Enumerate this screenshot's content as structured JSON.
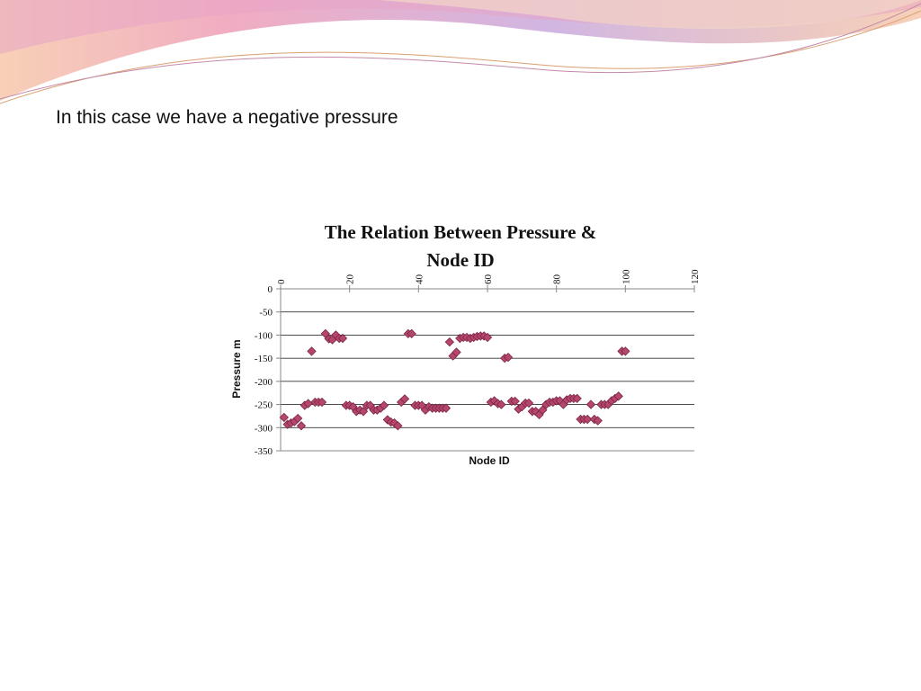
{
  "slide": {
    "text": "In this case we have a negative pressure"
  },
  "colors": {
    "marker_fill": "#b5476c",
    "marker_stroke": "#7a2446",
    "deco_pink": "#ee9eb7",
    "deco_lavender": "#c9a9dd",
    "deco_peach": "#f6c8aa"
  },
  "chart_data": {
    "type": "scatter",
    "title_line1": "The Relation Between  Pressure &",
    "title_line2": "Node ID",
    "xlabel": "Node  ID",
    "ylabel": "Pressure  m",
    "xlim": [
      0,
      120
    ],
    "ylim": [
      -350,
      0
    ],
    "x_ticks": [
      "0",
      "20",
      "40",
      "60",
      "80",
      "100",
      "120"
    ],
    "y_ticks": [
      "0",
      "-50",
      "-100",
      "-150",
      "-200",
      "-250",
      "-300",
      "-350"
    ],
    "grid": "horizontal major gridlines",
    "legend": "none",
    "x": [
      1,
      2,
      3,
      4,
      5,
      6,
      7,
      8,
      9,
      10,
      11,
      12,
      13,
      14,
      15,
      16,
      17,
      18,
      19,
      20,
      21,
      22,
      23,
      24,
      25,
      26,
      27,
      28,
      29,
      30,
      31,
      32,
      33,
      34,
      35,
      36,
      37,
      38,
      39,
      40,
      41,
      42,
      43,
      44,
      45,
      46,
      47,
      48,
      49,
      50,
      51,
      52,
      53,
      54,
      55,
      56,
      57,
      58,
      59,
      60,
      61,
      62,
      63,
      64,
      65,
      66,
      67,
      68,
      69,
      70,
      71,
      72,
      73,
      74,
      75,
      76,
      77,
      78,
      79,
      80,
      81,
      82,
      83,
      84,
      85,
      86,
      87,
      88,
      89,
      90,
      91,
      92,
      93,
      94,
      95,
      96,
      97,
      98,
      99,
      100
    ],
    "y": [
      -278,
      -293,
      -290,
      -287,
      -280,
      -296,
      -252,
      -248,
      -135,
      -245,
      -245,
      -245,
      -97,
      -108,
      -110,
      -100,
      -107,
      -107,
      -252,
      -252,
      -255,
      -265,
      -262,
      -265,
      -252,
      -252,
      -262,
      -262,
      -258,
      -252,
      -283,
      -288,
      -290,
      -296,
      -245,
      -238,
      -97,
      -97,
      -252,
      -252,
      -252,
      -262,
      -255,
      -258,
      -258,
      -258,
      -258,
      -258,
      -115,
      -145,
      -137,
      -107,
      -105,
      -105,
      -107,
      -105,
      -103,
      -102,
      -102,
      -105,
      -245,
      -242,
      -248,
      -250,
      -150,
      -148,
      -243,
      -243,
      -260,
      -255,
      -247,
      -247,
      -265,
      -265,
      -272,
      -262,
      -250,
      -245,
      -245,
      -242,
      -242,
      -250,
      -240,
      -237,
      -237,
      -237,
      -282,
      -282,
      -282,
      -250,
      -282,
      -285,
      -250,
      -250,
      -250,
      -242,
      -237,
      -232,
      -135,
      -135
    ]
  }
}
